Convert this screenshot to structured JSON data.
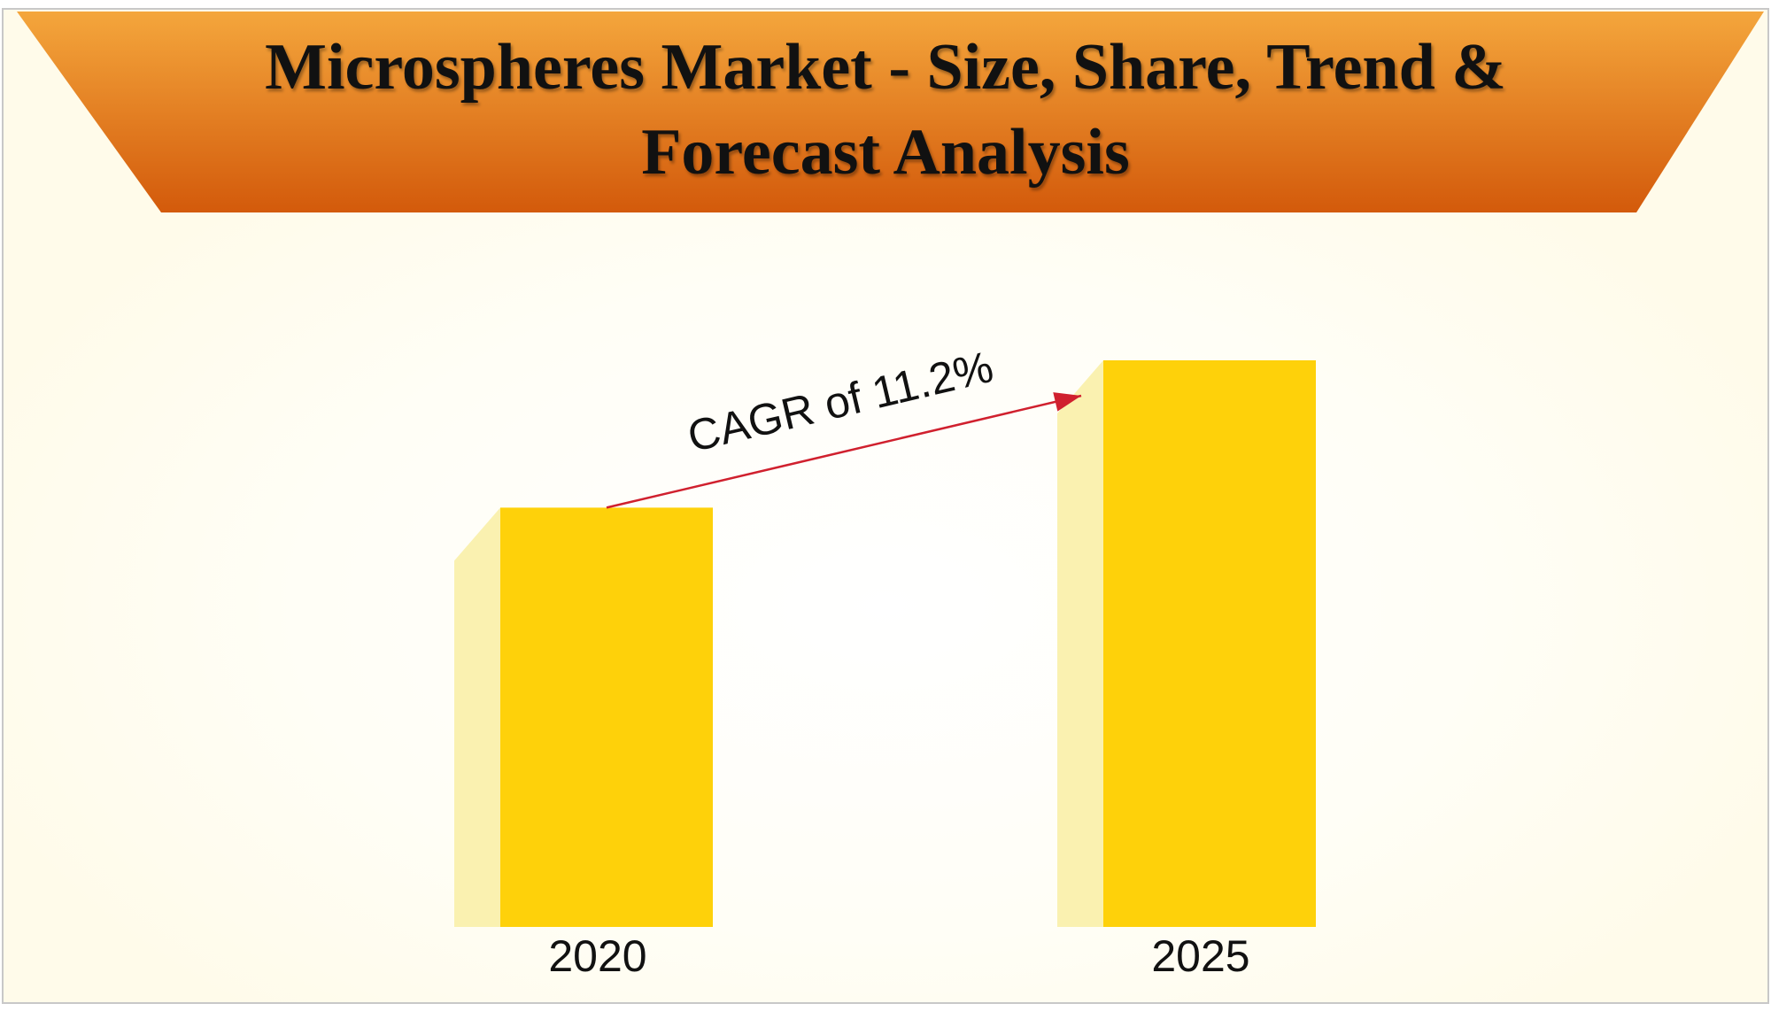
{
  "chart_data": {
    "type": "bar",
    "title": "Microspheres Market - Size, Share, Trend & Forecast Analysis",
    "annotation": "CAGR of 11.2%",
    "categories": [
      "2020",
      "2025"
    ],
    "values": [
      74,
      100
    ],
    "ylim": [
      0,
      100
    ],
    "color": "#fed10a",
    "side_color": "#faf1b0",
    "arrow_color": "#d0202e"
  }
}
